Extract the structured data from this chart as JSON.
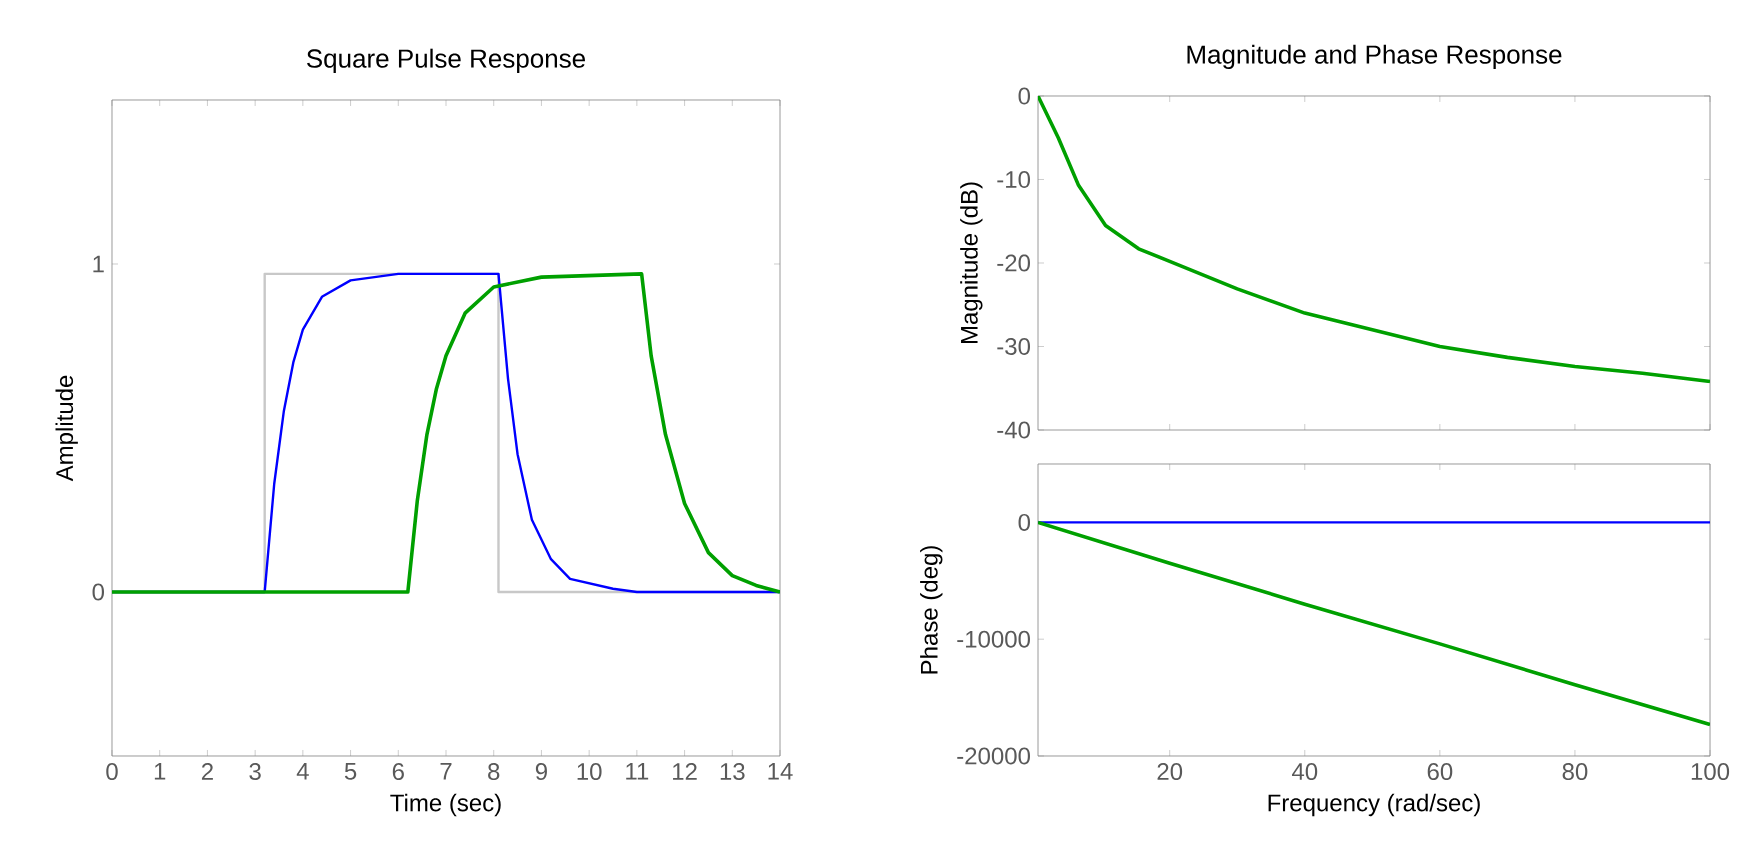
{
  "chart_data": [
    {
      "type": "line",
      "title": "Square Pulse Response",
      "xlabel": "Time (sec)",
      "ylabel": "Amplitude",
      "xlim": [
        0,
        14
      ],
      "ylim": [
        -0.5,
        1.5
      ],
      "xticks": [
        0,
        1,
        2,
        3,
        4,
        5,
        6,
        7,
        8,
        9,
        10,
        11,
        12,
        13,
        14
      ],
      "yticks": [
        0,
        1
      ],
      "grid": false,
      "marker": "none",
      "line_style": "solid",
      "series": [
        {
          "color": "#c8c8c8",
          "x": [
            0,
            3.2,
            3.2,
            8.1,
            8.1,
            14
          ],
          "values": [
            0,
            0,
            0.97,
            0.97,
            0,
            0
          ]
        },
        {
          "color": "#0000ff",
          "x": [
            0,
            3.2,
            3.4,
            3.6,
            3.8,
            4.0,
            4.4,
            5.0,
            6.0,
            8.1,
            8.3,
            8.5,
            8.8,
            9.2,
            9.6,
            10.5,
            11,
            14
          ],
          "values": [
            0,
            0,
            0.33,
            0.55,
            0.7,
            0.8,
            0.9,
            0.95,
            0.97,
            0.97,
            0.65,
            0.42,
            0.22,
            0.1,
            0.04,
            0.01,
            0,
            0
          ]
        },
        {
          "color": "#00a000",
          "x": [
            0,
            6.2,
            6.4,
            6.6,
            6.8,
            7.0,
            7.4,
            8.0,
            9.0,
            11.1,
            11.3,
            11.6,
            12.0,
            12.5,
            13.0,
            13.5,
            14
          ],
          "values": [
            0,
            0,
            0.28,
            0.48,
            0.62,
            0.72,
            0.85,
            0.93,
            0.96,
            0.97,
            0.72,
            0.48,
            0.27,
            0.12,
            0.05,
            0.02,
            0
          ]
        }
      ]
    },
    {
      "type": "line",
      "title": "Magnitude and Phase Response",
      "ylabel": "Magnitude (dB)",
      "xlim": [
        0.5,
        100
      ],
      "ylim": [
        -40,
        0
      ],
      "xticks": [
        20,
        40,
        60,
        80,
        100
      ],
      "yticks": [
        -40,
        -30,
        -20,
        -10,
        0
      ],
      "tick_labels": "y",
      "grid": false,
      "marker": "none",
      "line_style": "solid",
      "series": [
        {
          "color": "#00a000",
          "x": [
            0.5,
            3.5,
            6.5,
            10.5,
            15.4,
            20,
            30,
            40,
            50,
            60,
            70,
            80,
            90,
            100
          ],
          "values": [
            0,
            -5,
            -10.7,
            -15.5,
            -18.3,
            -19.8,
            -23.1,
            -26,
            -28,
            -30,
            -31.3,
            -32.4,
            -33.2,
            -34.2
          ]
        }
      ]
    },
    {
      "type": "line",
      "xlabel": "Frequency  (rad/sec)",
      "ylabel": "Phase (deg)",
      "xlim": [
        0.5,
        100
      ],
      "ylim": [
        -20000,
        5000
      ],
      "xticks": [
        20,
        40,
        60,
        80,
        100
      ],
      "yticks": [
        -20000,
        -10000,
        0
      ],
      "grid": false,
      "marker": "none",
      "line_style": "solid",
      "series": [
        {
          "color": "#0000ff",
          "x": [
            0.5,
            100
          ],
          "values": [
            0,
            0
          ]
        },
        {
          "color": "#00a000",
          "x": [
            0.5,
            20,
            40,
            60,
            80,
            100
          ],
          "values": [
            0,
            -3500,
            -7000,
            -10400,
            -13900,
            -17300
          ]
        }
      ]
    }
  ]
}
